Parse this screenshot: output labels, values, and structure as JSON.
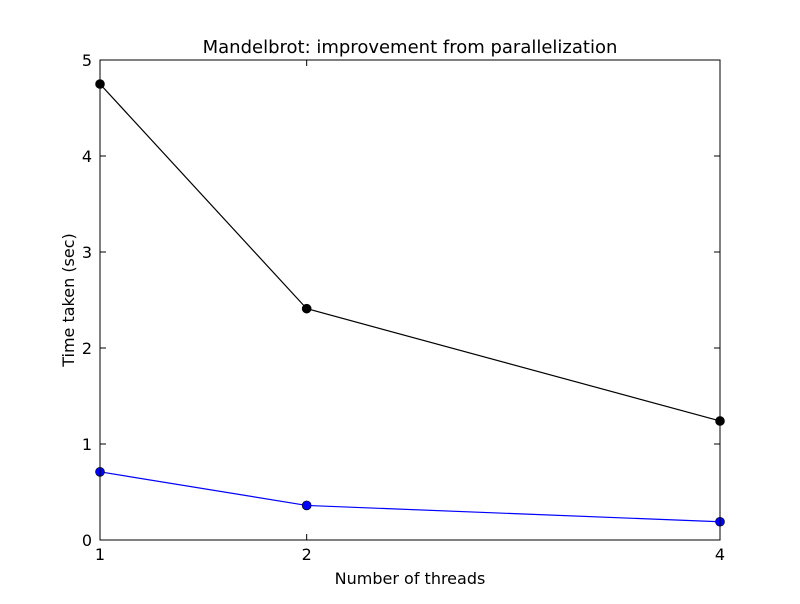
{
  "chart_data": {
    "type": "line",
    "title": "Mandelbrot: improvement from parallelization",
    "xlabel": "Number of threads",
    "ylabel": "Time taken (sec)",
    "x": [
      1,
      2,
      4
    ],
    "xlim": [
      1,
      4
    ],
    "ylim": [
      0,
      5
    ],
    "xticks": [
      1,
      2,
      4
    ],
    "yticks": [
      0,
      1,
      2,
      3,
      4,
      5
    ],
    "grid": false,
    "legend": "none",
    "series": [
      {
        "values": [
          4.75,
          2.41,
          1.24
        ],
        "color": "#000000"
      },
      {
        "values": [
          0.71,
          0.36,
          0.19
        ],
        "color": "#0000ff"
      }
    ]
  }
}
